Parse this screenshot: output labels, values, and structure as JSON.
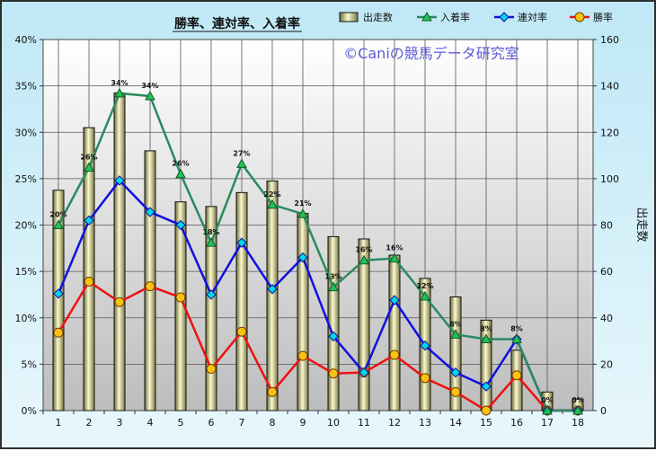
{
  "chart_data": {
    "type": "bar+line",
    "title": "勝率、連対率、入着率",
    "watermark": "©Caniの競馬データ研究室",
    "categories": [
      "1",
      "2",
      "3",
      "4",
      "5",
      "6",
      "7",
      "8",
      "9",
      "10",
      "11",
      "12",
      "13",
      "14",
      "15",
      "16",
      "17",
      "18"
    ],
    "bar_series": {
      "name": "出走数",
      "axis": "right",
      "values": [
        95,
        122,
        137,
        112,
        90,
        88,
        94,
        99,
        85,
        75,
        74,
        67,
        57,
        49,
        39,
        26,
        8,
        5
      ],
      "color": "#f4f1b6"
    },
    "series": [
      {
        "name": "入着率",
        "axis": "left",
        "color": "#2a8a60",
        "marker_color": "#22c25a",
        "marker": "triangle",
        "values": [
          20.0,
          26.2,
          34.2,
          33.9,
          25.5,
          18.1,
          26.6,
          22.2,
          21.2,
          13.3,
          16.2,
          16.4,
          12.3,
          8.2,
          7.7,
          7.7,
          0,
          0
        ],
        "data_labels": [
          "20%",
          "26%",
          "34%",
          "34%",
          "26%",
          "18%",
          "27%",
          "22%",
          "21%",
          "13%",
          "16%",
          "16%",
          "12%",
          "8%",
          "8%",
          "8%",
          "0%",
          "0%"
        ]
      },
      {
        "name": "連対率",
        "axis": "left",
        "color": "#1010e0",
        "marker_color": "#00d8e8",
        "marker": "diamond",
        "values": [
          12.6,
          20.5,
          24.8,
          21.4,
          20.0,
          12.5,
          18.1,
          13.1,
          16.5,
          8.0,
          4.1,
          11.9,
          7.0,
          4.1,
          2.6,
          7.7,
          0,
          0
        ]
      },
      {
        "name": "勝率",
        "axis": "left",
        "color": "#ee1111",
        "marker_color": "#f7c312",
        "marker": "circle",
        "values": [
          8.4,
          13.9,
          11.7,
          13.4,
          12.2,
          4.5,
          8.5,
          2.0,
          5.9,
          4.0,
          4.1,
          6.0,
          3.5,
          2.0,
          0,
          3.8,
          0,
          0
        ]
      }
    ],
    "ylabel_left": "",
    "ylabel_right": "出走数",
    "ylim_left": [
      0,
      40
    ],
    "yticks_left": [
      "0%",
      "5%",
      "10%",
      "15%",
      "20%",
      "25%",
      "30%",
      "35%",
      "40%"
    ],
    "ylim_right": [
      0,
      160
    ],
    "yticks_right": [
      "0",
      "20",
      "40",
      "60",
      "80",
      "100",
      "120",
      "140",
      "160"
    ],
    "grid": true,
    "legend_position": "top-right",
    "legend": [
      {
        "name": "出走数",
        "kind": "bar"
      },
      {
        "name": "入着率",
        "kind": "triangle"
      },
      {
        "name": "連対率",
        "kind": "diamond"
      },
      {
        "name": "勝率",
        "kind": "circle"
      }
    ]
  }
}
